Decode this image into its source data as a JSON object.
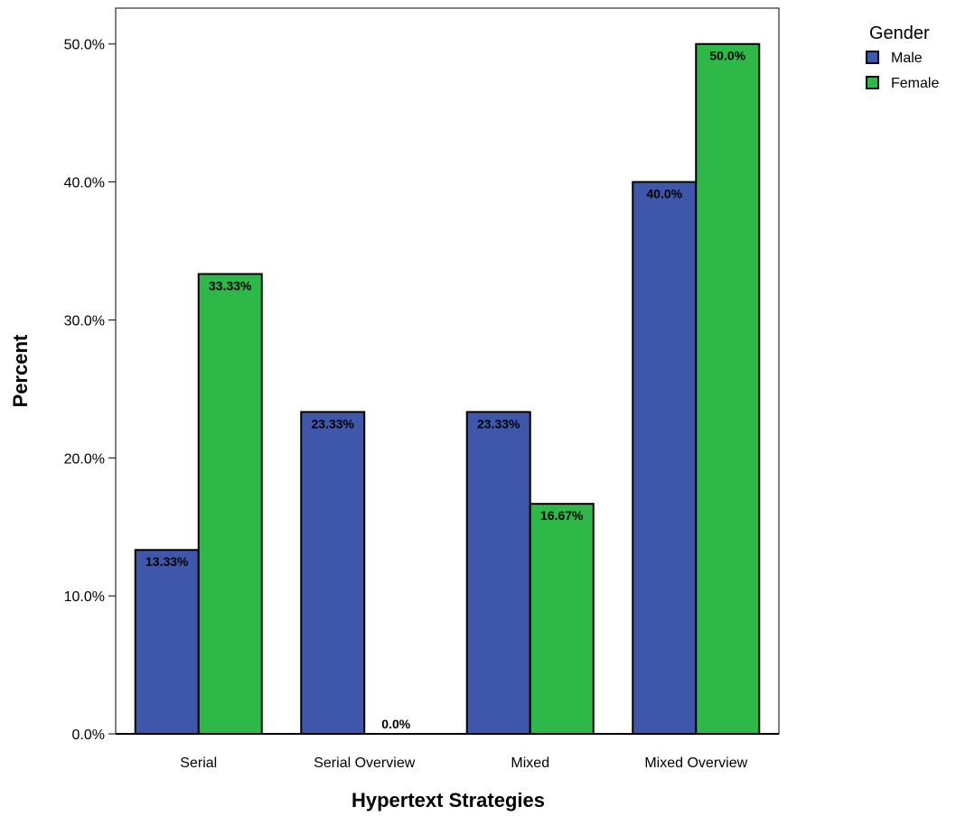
{
  "chart_data": {
    "type": "bar",
    "categories": [
      "Serial",
      "Serial Overview",
      "Mixed",
      "Mixed Overview"
    ],
    "series": [
      {
        "name": "Male",
        "color": "#3f57ab",
        "values": [
          13.33,
          23.33,
          23.33,
          40.0
        ],
        "labels": [
          "13.33%",
          "23.33%",
          "23.33%",
          "40.0%"
        ]
      },
      {
        "name": "Female",
        "color": "#2db847",
        "values": [
          33.33,
          0.0,
          16.67,
          50.0
        ],
        "labels": [
          "33.33%",
          "0.0%",
          "16.67%",
          "50.0%"
        ]
      }
    ],
    "xlabel": "Hypertext Strategies",
    "ylabel": "Percent",
    "ylim": [
      0,
      52.6
    ],
    "yticks": [
      0,
      10,
      20,
      30,
      40,
      50
    ],
    "ytick_labels": [
      "0.0%",
      "10.0%",
      "20.0%",
      "30.0%",
      "40.0%",
      "50.0%"
    ],
    "legend": {
      "title": "Gender",
      "placement": "top-right"
    },
    "grid": false
  }
}
